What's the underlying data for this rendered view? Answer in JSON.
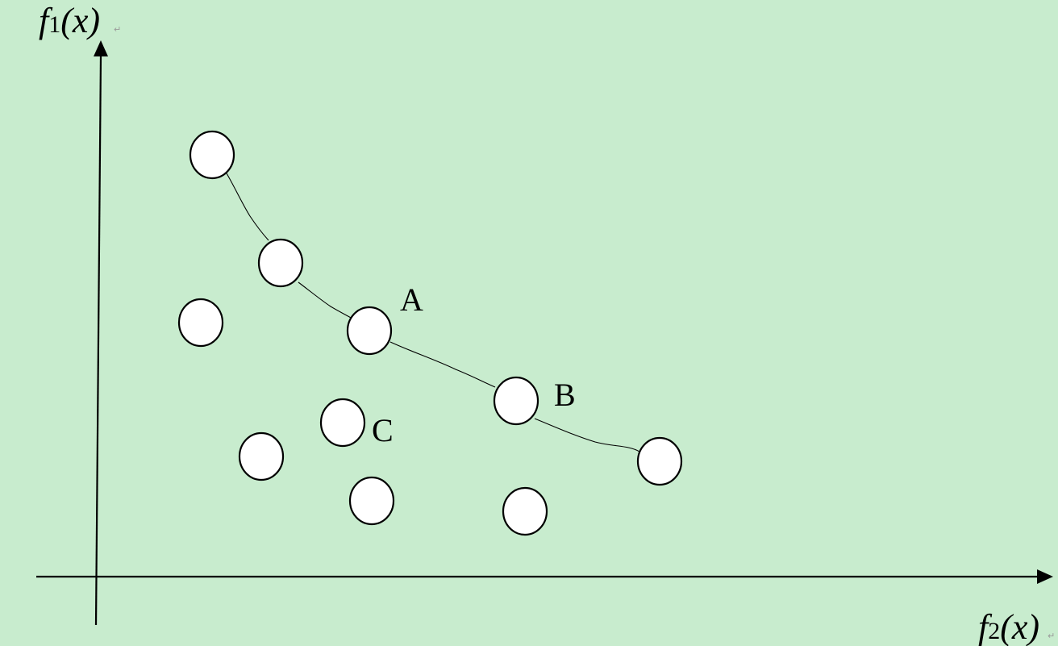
{
  "axes": {
    "y": {
      "func": "f",
      "sub": "1",
      "rest": "(x)"
    },
    "x": {
      "func": "f",
      "sub": "2",
      "rest": "(x)"
    },
    "para_mark": "↵"
  },
  "point_labels": {
    "a": "A",
    "b": "B",
    "c": "C"
  }
}
